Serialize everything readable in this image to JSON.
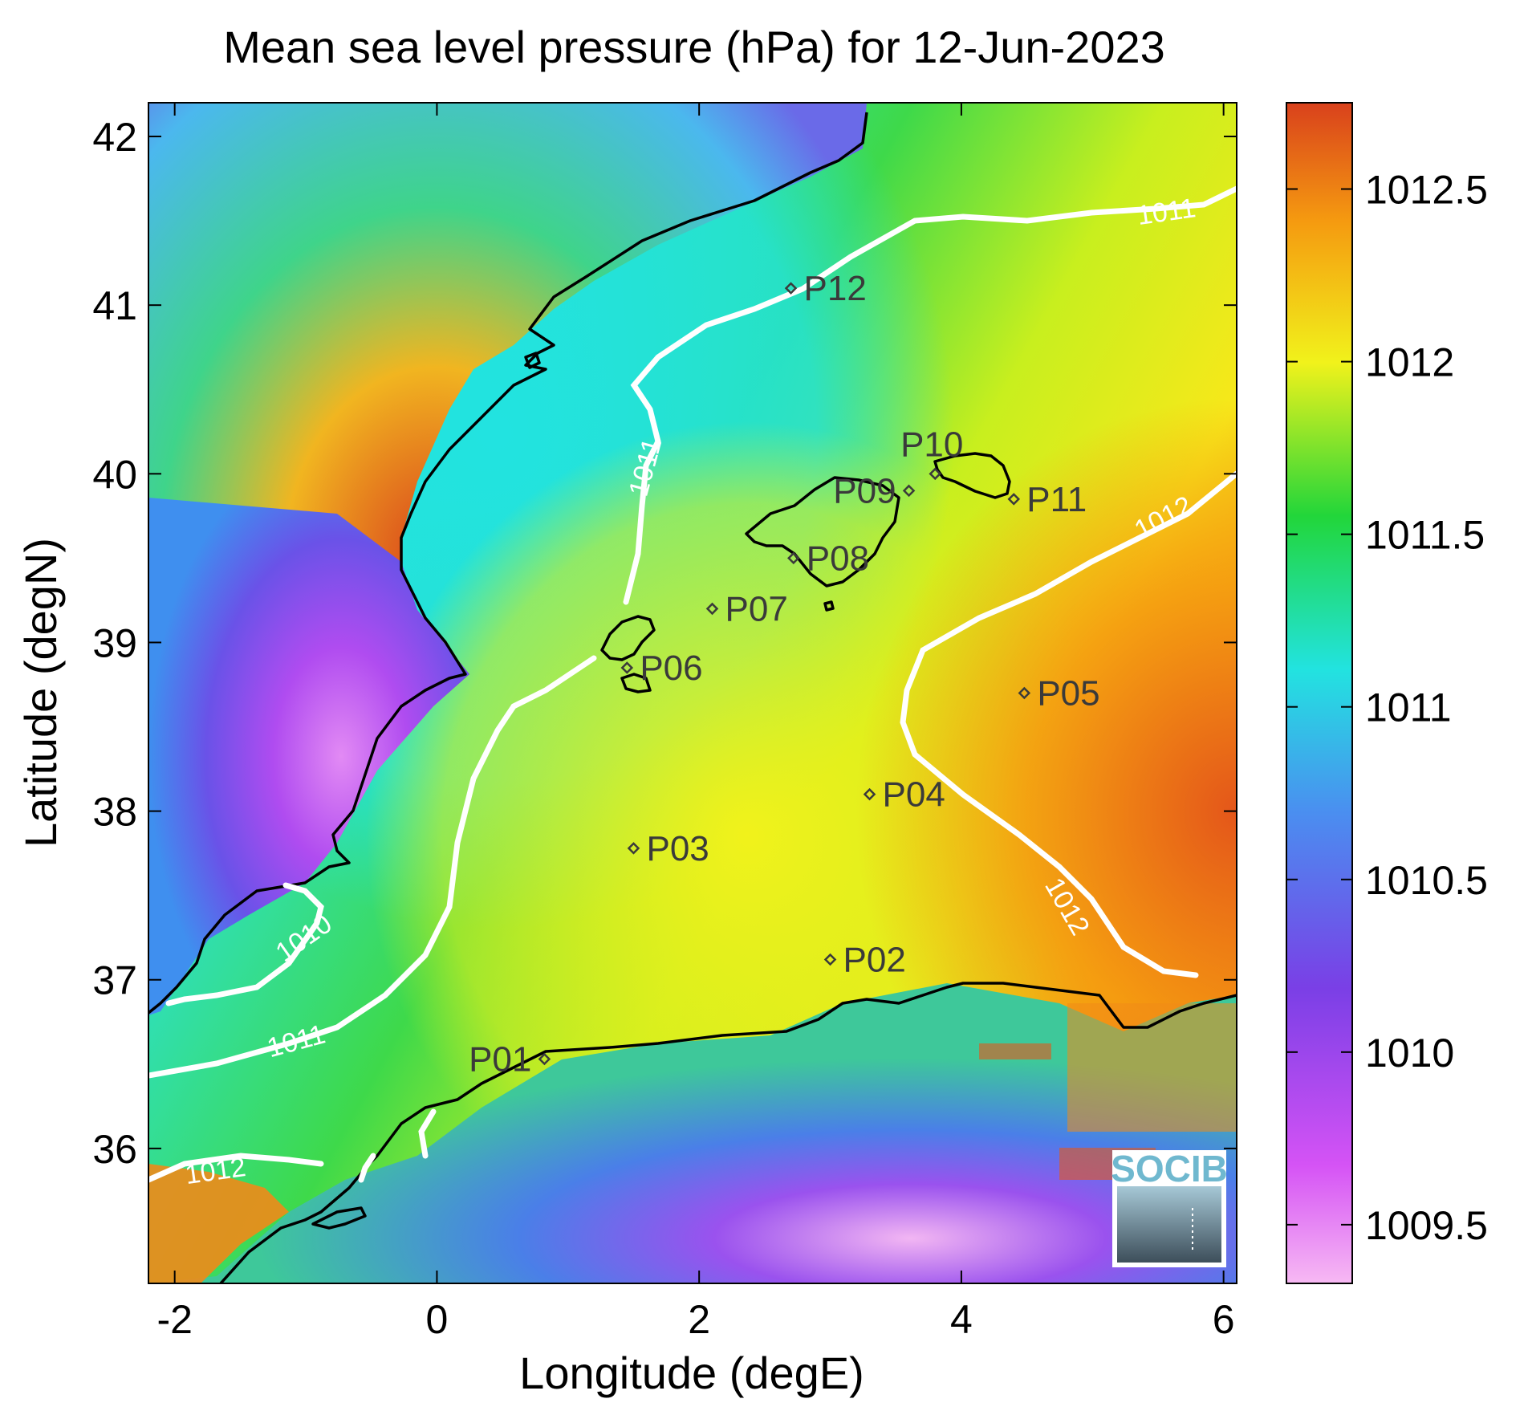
{
  "title": "Mean sea level pressure (hPa) for 12-Jun-2023",
  "xlabel": "Longitude (degE)",
  "ylabel": "Latitude (degN)",
  "x_range": [
    -2.2,
    6.1
  ],
  "y_range": [
    35.2,
    42.2
  ],
  "x_ticks": [
    {
      "value": -2,
      "label": "-2"
    },
    {
      "value": 0,
      "label": "0"
    },
    {
      "value": 2,
      "label": "2"
    },
    {
      "value": 4,
      "label": "4"
    },
    {
      "value": 6,
      "label": "6"
    }
  ],
  "y_ticks": [
    {
      "value": 36,
      "label": "36"
    },
    {
      "value": 37,
      "label": "37"
    },
    {
      "value": 38,
      "label": "38"
    },
    {
      "value": 39,
      "label": "39"
    },
    {
      "value": 40,
      "label": "40"
    },
    {
      "value": 41,
      "label": "41"
    },
    {
      "value": 42,
      "label": "42"
    }
  ],
  "colorbar": {
    "range": [
      1009.33,
      1012.75
    ],
    "ticks": [
      {
        "value": 1009.5,
        "label": "1009.5"
      },
      {
        "value": 1010,
        "label": "1010"
      },
      {
        "value": 1010.5,
        "label": "1010.5"
      },
      {
        "value": 1011,
        "label": "1011"
      },
      {
        "value": 1011.5,
        "label": "1011.5"
      },
      {
        "value": 1012,
        "label": "1012"
      },
      {
        "value": 1012.5,
        "label": "1012.5"
      }
    ],
    "colors": [
      "#f7b9f3",
      "#d553f5",
      "#7a3fe6",
      "#4a8ff0",
      "#22e3e0",
      "#22d63a",
      "#f1f21b",
      "#f59a10",
      "#d9411c"
    ]
  },
  "points": [
    {
      "name": "P01",
      "lon": 0.82,
      "lat": 36.53,
      "label_side": "left"
    },
    {
      "name": "P02",
      "lon": 3.0,
      "lat": 37.12,
      "label_side": "right"
    },
    {
      "name": "P03",
      "lon": 1.5,
      "lat": 37.78,
      "label_side": "right"
    },
    {
      "name": "P04",
      "lon": 3.3,
      "lat": 38.1,
      "label_side": "right"
    },
    {
      "name": "P05",
      "lon": 4.48,
      "lat": 38.7,
      "label_side": "right"
    },
    {
      "name": "P06",
      "lon": 1.45,
      "lat": 38.85,
      "label_side": "right"
    },
    {
      "name": "P07",
      "lon": 2.1,
      "lat": 39.2,
      "label_side": "right"
    },
    {
      "name": "P08",
      "lon": 2.72,
      "lat": 39.5,
      "label_side": "right"
    },
    {
      "name": "P09",
      "lon": 3.6,
      "lat": 39.9,
      "label_side": "left"
    },
    {
      "name": "P10",
      "lon": 3.8,
      "lat": 40.0,
      "label_side": "above"
    },
    {
      "name": "P11",
      "lon": 4.4,
      "lat": 39.85,
      "label_side": "right"
    },
    {
      "name": "P12",
      "lon": 2.7,
      "lat": 41.1,
      "label_side": "right"
    }
  ],
  "contours": [
    {
      "level": "1010",
      "label": "1010"
    },
    {
      "level": "1011",
      "label": "1011"
    },
    {
      "level": "1012",
      "label": "1012"
    }
  ],
  "logo": {
    "text": "SOCIB"
  },
  "colors": {
    "contour": "#ffffff",
    "coastline": "#000000",
    "marker": "#3a3a3a"
  }
}
